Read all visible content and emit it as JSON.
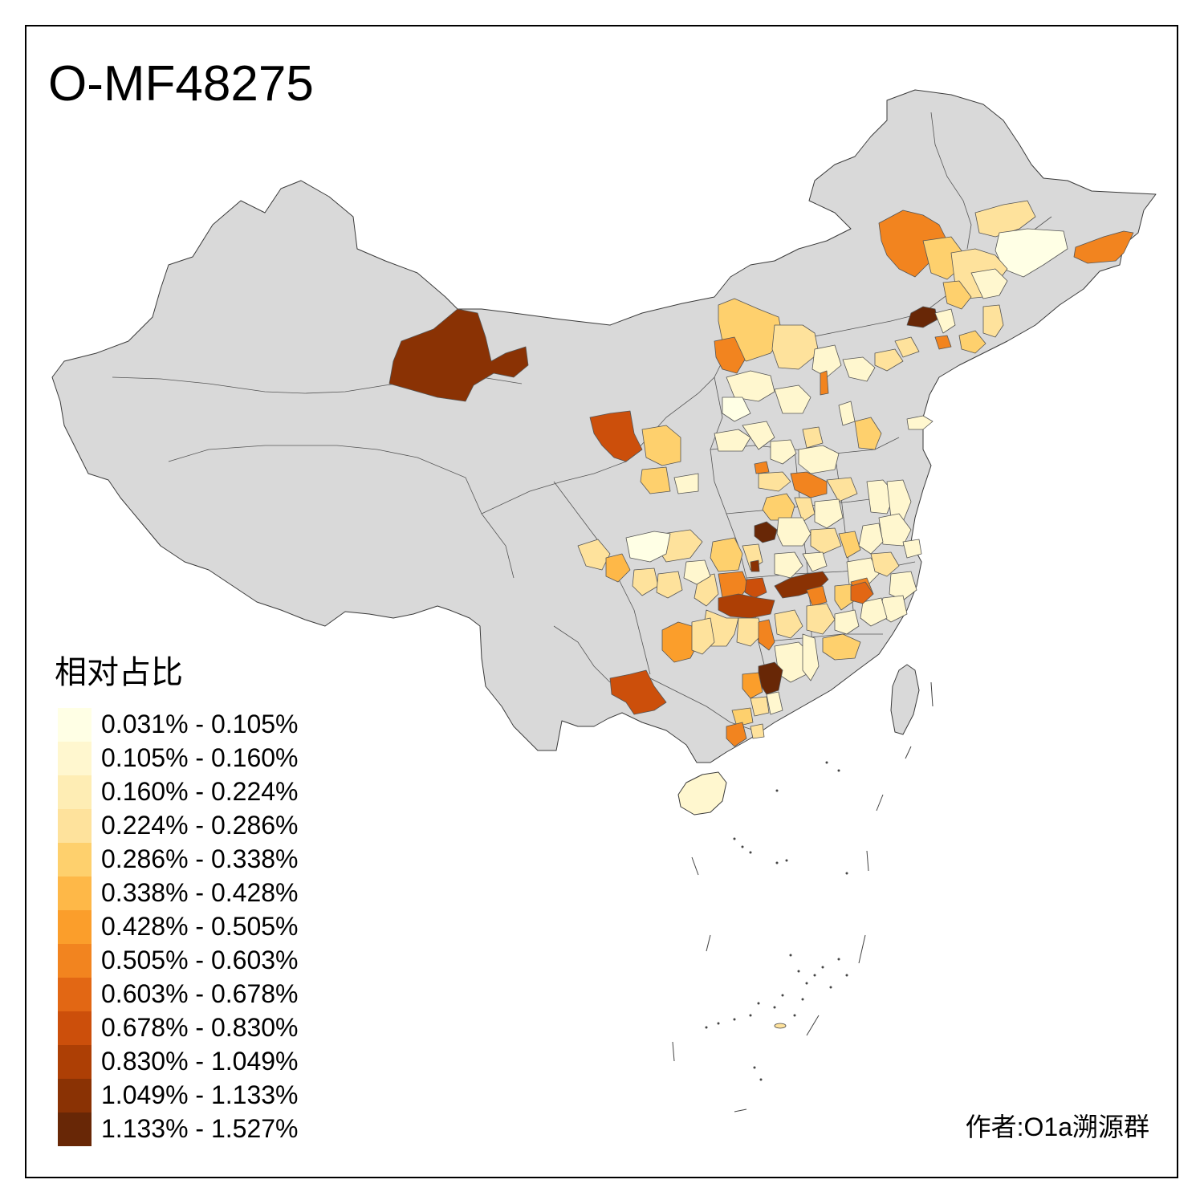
{
  "title": "O-MF48275",
  "legend": {
    "title": "相对占比",
    "bins": [
      {
        "label": "0.031% - 0.105%",
        "color": "#FFFFE5"
      },
      {
        "label": "0.105% - 0.160%",
        "color": "#FFF7CF"
      },
      {
        "label": "0.160% - 0.224%",
        "color": "#FEEDB4"
      },
      {
        "label": "0.224% - 0.286%",
        "color": "#FEE29C"
      },
      {
        "label": "0.286% - 0.338%",
        "color": "#FED06D"
      },
      {
        "label": "0.338% - 0.428%",
        "color": "#FEB848"
      },
      {
        "label": "0.428% - 0.505%",
        "color": "#FB9E2B"
      },
      {
        "label": "0.505% - 0.603%",
        "color": "#F2841F"
      },
      {
        "label": "0.603% - 0.678%",
        "color": "#E26714"
      },
      {
        "label": "0.678% - 0.830%",
        "color": "#CC4F0B"
      },
      {
        "label": "0.830% - 1.049%",
        "color": "#AD3F05"
      },
      {
        "label": "1.049% - 1.133%",
        "color": "#8A3204"
      },
      {
        "label": "1.133% - 1.527%",
        "color": "#682706"
      }
    ]
  },
  "credit": "作者:O1a溯源群",
  "colors": {
    "no_data": "#D9D9D9",
    "border": "#3A3A3A",
    "frame": "#000000"
  }
}
